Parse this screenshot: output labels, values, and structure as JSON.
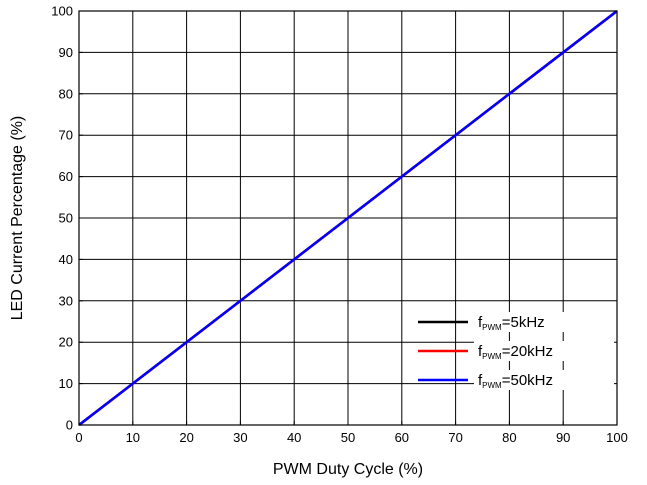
{
  "chart_data": {
    "type": "line",
    "title": "",
    "xlabel": "PWM Duty Cycle (%)",
    "ylabel": "LED Current Percentage (%)",
    "xlim": [
      0,
      100
    ],
    "ylim": [
      0,
      100
    ],
    "xticks": [
      0,
      10,
      20,
      30,
      40,
      50,
      60,
      70,
      80,
      90,
      100
    ],
    "yticks": [
      0,
      10,
      20,
      30,
      40,
      50,
      60,
      70,
      80,
      90,
      100
    ],
    "grid": true,
    "legend_position": "bottom-right",
    "series": [
      {
        "label_main": "f",
        "label_sub": "PWM",
        "label_tail": "=5kHz",
        "color": "#000000",
        "x": [
          0,
          100
        ],
        "y": [
          0,
          100
        ]
      },
      {
        "label_main": "f",
        "label_sub": "PWM",
        "label_tail": "=20kHz",
        "color": "#ff0000",
        "x": [
          0,
          100
        ],
        "y": [
          0,
          100
        ]
      },
      {
        "label_main": "f",
        "label_sub": "PWM",
        "label_tail": "=50kHz",
        "color": "#0000ff",
        "x": [
          0,
          100
        ],
        "y": [
          0,
          100
        ]
      }
    ]
  }
}
